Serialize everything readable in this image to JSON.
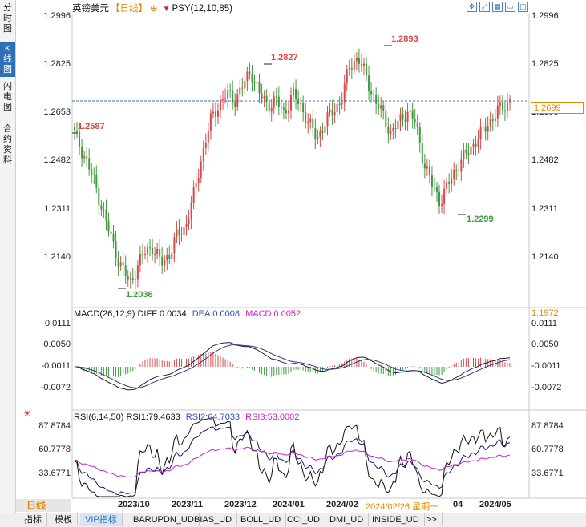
{
  "sidebar": {
    "items": [
      {
        "label": "分时图",
        "chars": [
          "分",
          "时",
          "图"
        ]
      },
      {
        "label": "K线图",
        "chars": [
          "K",
          "线",
          "图"
        ]
      },
      {
        "label": "闪电图",
        "chars": [
          "闪",
          "电",
          "图"
        ]
      },
      {
        "label": "合约资料",
        "chars": [
          "合",
          "约",
          "资",
          "料"
        ]
      }
    ]
  },
  "header": {
    "symbol": "英镑美元",
    "period": "【日线】",
    "plus": "⊕",
    "indicator": "PSY(12,10,85)"
  },
  "main_chart": {
    "right_axis": [
      "1.2996",
      "1.2825",
      "1.2653",
      "1.2482",
      "1.2311",
      "1.2140"
    ],
    "left_axis": [
      "1.2996",
      "1.2825",
      "1.2653",
      "1.2482",
      "1.2311",
      "1.2140"
    ],
    "current_price": "1.2699",
    "extra_axis": "1.1972",
    "annotations": {
      "start": "1.2587",
      "low1": "1.2036",
      "high1": "1.2827",
      "high2": "1.2893",
      "low2": "1.2299"
    }
  },
  "macd": {
    "title": "MACD(26,12,9)",
    "diff_label": "DIFF:0.0034",
    "dea_label": "DEA:0.0008",
    "macd_label": "MACD:0.0052",
    "axis": [
      "0.0111",
      "0.0050",
      "-0.0011",
      "-0.0072"
    ]
  },
  "rsi": {
    "title": "RSI(6,14,50)",
    "rsi1": "RSI1:79.4633",
    "rsi2": "RSI2:64.7033",
    "rsi3": "RSI3:53.0002",
    "axis": [
      "87.8784",
      "60.7778",
      "33.6771"
    ]
  },
  "x_axis": {
    "labels": [
      "2023/10",
      "2023/11",
      "2023/12",
      "2024/01",
      "2024/02",
      "04",
      "2024/05"
    ],
    "cursor_date": "2024/02/26 星期一"
  },
  "bottom": {
    "period_tab": "日线",
    "tabs": [
      "指标",
      "模板",
      "VIP指标",
      "BARUPDN_UD",
      "BIAS_UD",
      "BOLL_UD",
      "CCI_UD",
      "DMI_UD",
      "INSIDE_UD",
      ">>"
    ]
  },
  "colors": {
    "up": "#d64a4a",
    "down": "#3f9a3f",
    "accent": "#e08a00",
    "blue": "#2f6fb8",
    "magenta": "#d01fd0"
  }
}
